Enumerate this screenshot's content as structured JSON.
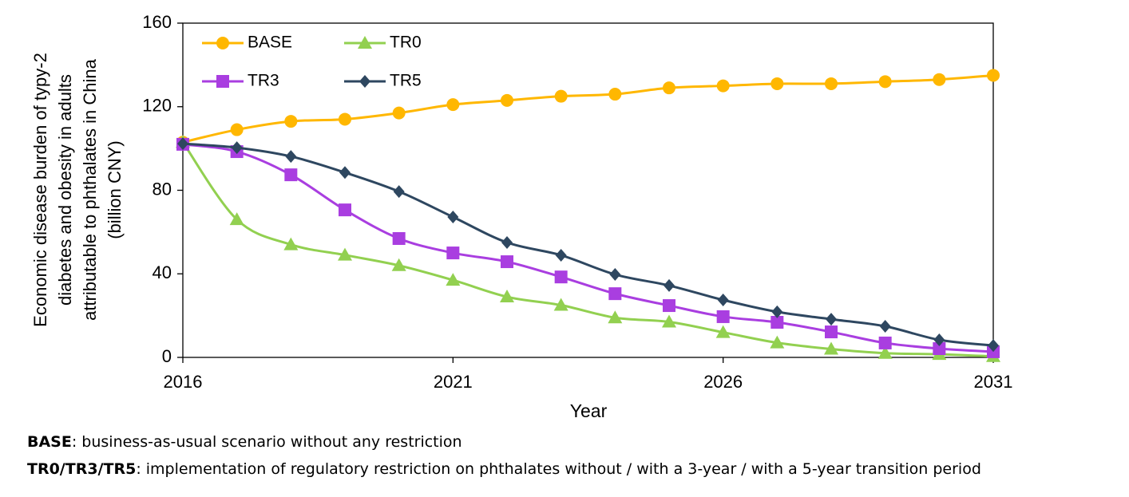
{
  "chart_data": {
    "type": "line",
    "xlabel": "Year",
    "ylabel": [
      "Economic disease burden of typy-2",
      "diabetes and obesity in adults",
      "attributable to phthalates in China",
      "(billion CNY)"
    ],
    "x": [
      2016,
      2017,
      2018,
      2019,
      2020,
      2021,
      2022,
      2023,
      2024,
      2025,
      2026,
      2027,
      2028,
      2029,
      2030,
      2031
    ],
    "xlim": [
      2016,
      2031
    ],
    "xticks": [
      2016,
      2021,
      2026,
      2031
    ],
    "ylim": [
      0,
      160
    ],
    "yticks": [
      0,
      40,
      80,
      120,
      160
    ],
    "legend": "upper left",
    "series": [
      {
        "name": "BASE",
        "color": "#FFB700",
        "marker": "circle",
        "values": [
          103,
          109,
          113,
          114,
          117,
          121,
          123,
          125,
          126,
          129,
          130,
          131,
          131,
          132,
          133,
          135
        ]
      },
      {
        "name": "TR0",
        "color": "#92D050",
        "marker": "triangle",
        "values": [
          103,
          66,
          54,
          49,
          44,
          37,
          29,
          25,
          19,
          17,
          12,
          7,
          4,
          2,
          1.5,
          0.5
        ]
      },
      {
        "name": "TR3",
        "color": "#A93EE0",
        "marker": "square",
        "values": [
          102,
          98.5,
          87.4,
          70.6,
          56.9,
          50,
          45.8,
          38.5,
          30.5,
          24.8,
          19.5,
          16.8,
          12.2,
          6.9,
          4.2,
          2.7
        ]
      },
      {
        "name": "TR5",
        "color": "#2E4760",
        "marker": "diamond",
        "values": [
          102.3,
          100.4,
          96.2,
          88.5,
          79.4,
          67.2,
          55,
          48.9,
          39.7,
          34.4,
          27.5,
          21.8,
          18.3,
          14.9,
          8.4,
          5.7
        ]
      }
    ],
    "notes": [
      {
        "term": "BASE",
        "text": ": business-as-usual scenario without any restriction"
      },
      {
        "term": "TR0/TR3/TR5",
        "text": ": implementation of regulatory restriction on phthalates without / with a 3-year / with a 5-year transition period"
      }
    ]
  }
}
